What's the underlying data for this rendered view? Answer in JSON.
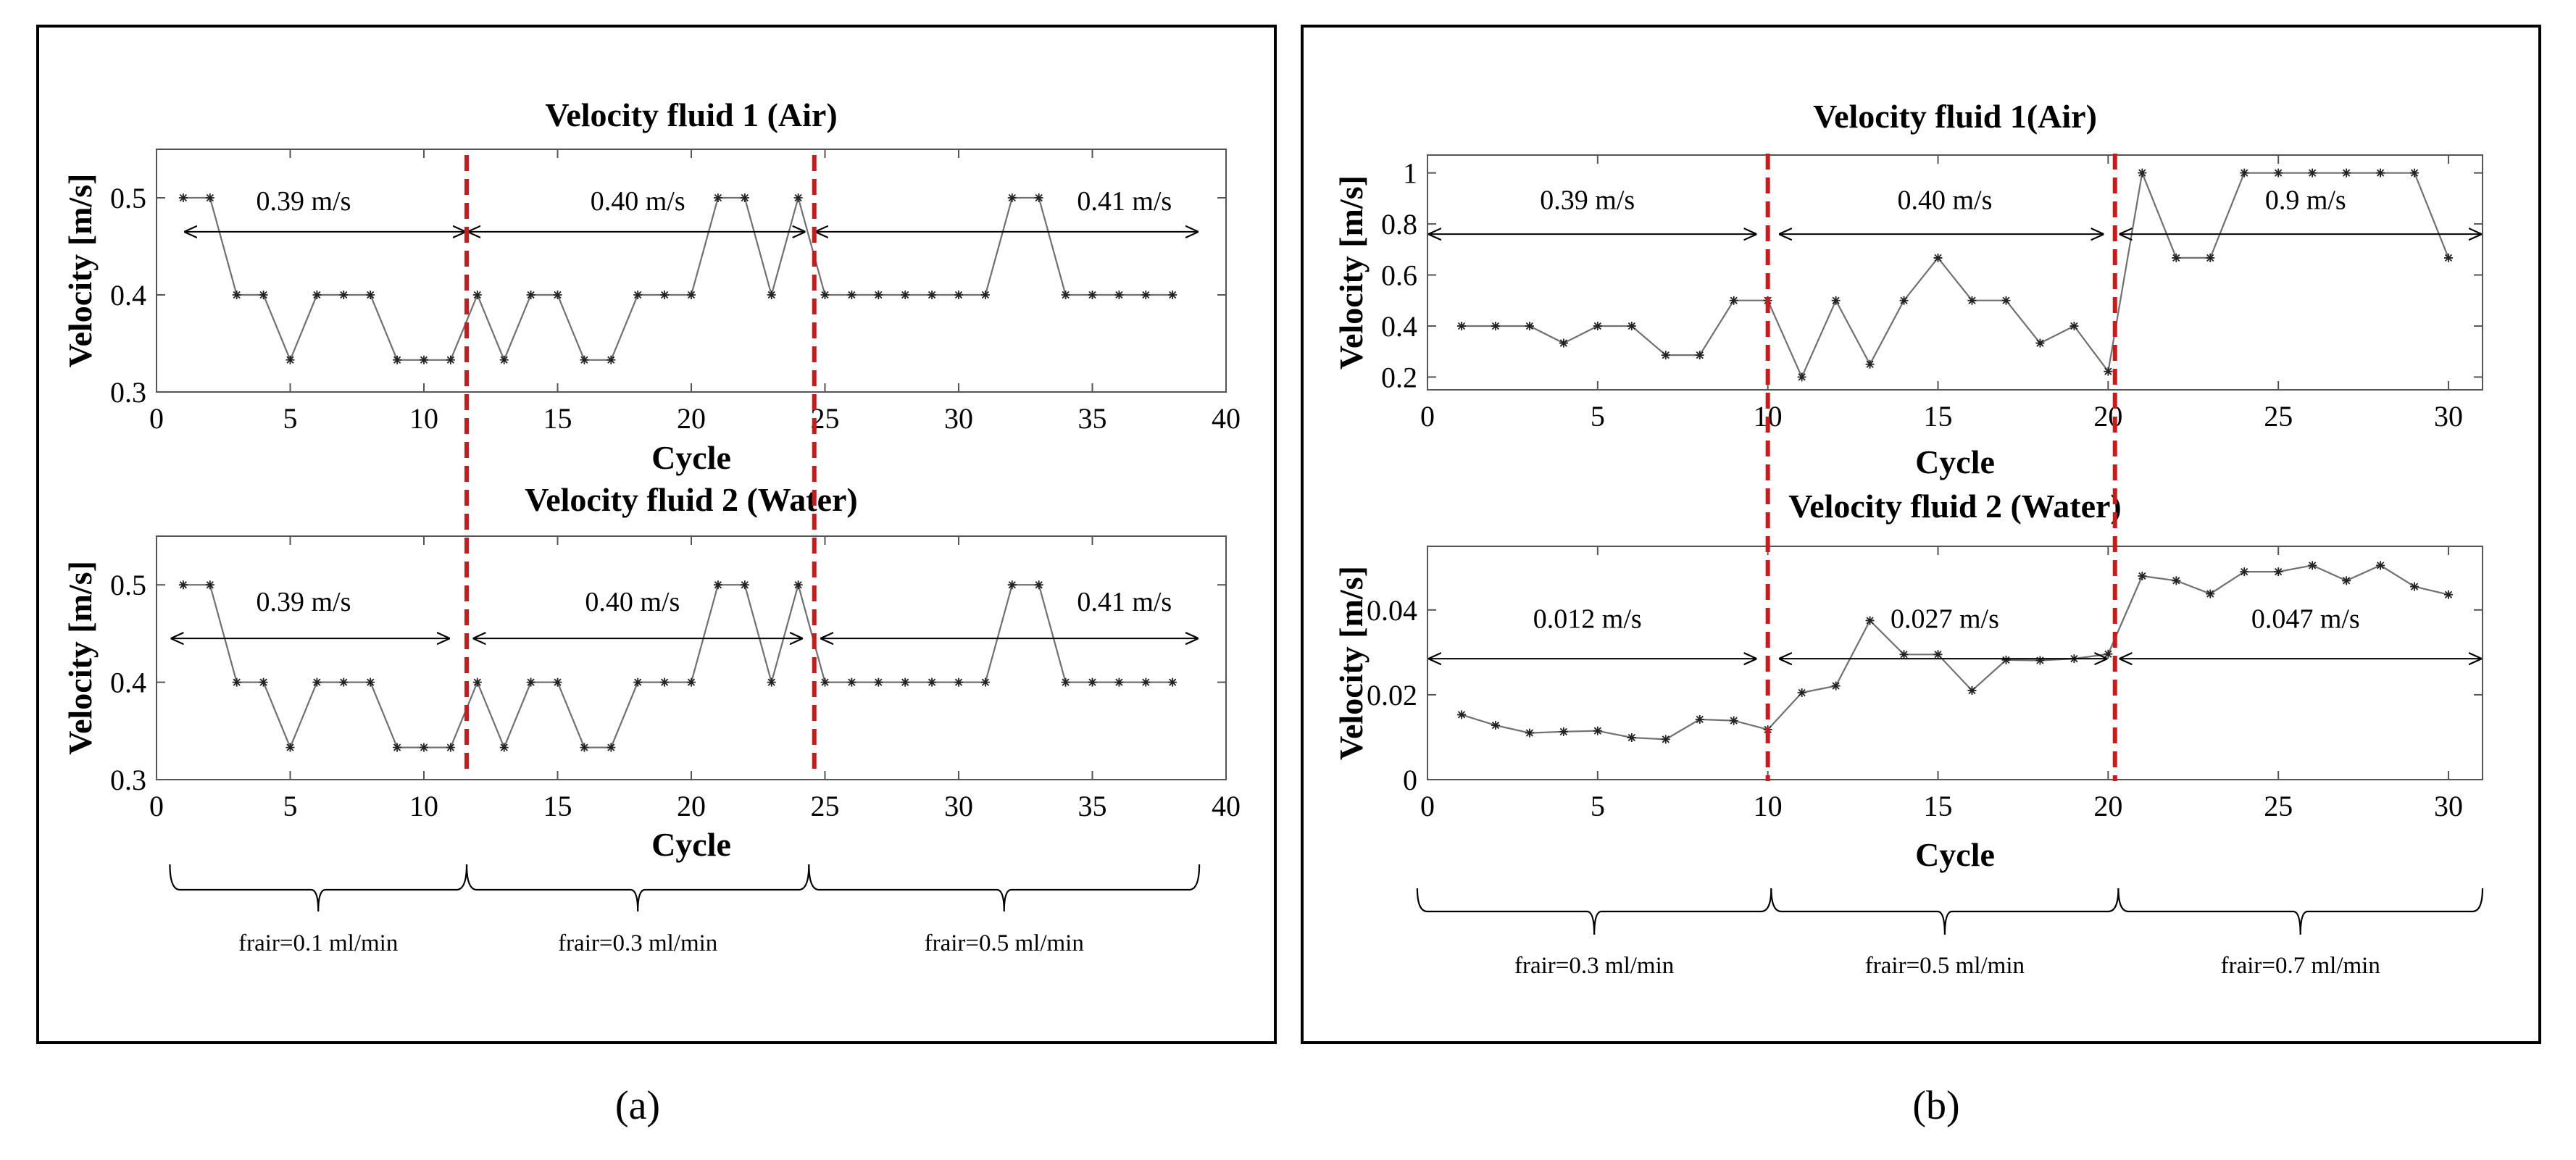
{
  "figure": {
    "panels": [
      {
        "label": "(a)",
        "charts": [
          {
            "title": "Velocity fluid 1 (Air)",
            "ylabel": "Velocity  [m/s]",
            "xlabel": "Cycle",
            "xlim": [
              0,
              40
            ],
            "ylim": [
              0.3,
              0.55
            ],
            "xticks": [
              0,
              5,
              10,
              15,
              20,
              25,
              30,
              35,
              40
            ],
            "yticks": [
              0.3,
              0.4,
              0.5
            ],
            "ytick_labels": [
              "0.3",
              "0.4",
              "0.5"
            ],
            "x": [
              1,
              2,
              3,
              4,
              5,
              6,
              7,
              8,
              9,
              10,
              11,
              12,
              13,
              14,
              15,
              16,
              17,
              18,
              19,
              20,
              21,
              22,
              23,
              24,
              25,
              26,
              27,
              28,
              29,
              30,
              31,
              32,
              33,
              34,
              35,
              36,
              37,
              38
            ],
            "values": [
              0.5,
              0.5,
              0.4,
              0.4,
              0.333,
              0.4,
              0.4,
              0.4,
              0.333,
              0.333,
              0.333,
              0.4,
              0.333,
              0.4,
              0.4,
              0.333,
              0.333,
              0.4,
              0.4,
              0.4,
              0.5,
              0.5,
              0.4,
              0.5,
              0.4,
              0.4,
              0.4,
              0.4,
              0.4,
              0.4,
              0.4,
              0.5,
              0.5,
              0.4,
              0.4,
              0.4,
              0.4,
              0.4
            ],
            "dividers": [
              11.6,
              24.6
            ],
            "arrow_y": 0.465,
            "segments": [
              {
                "from": 1,
                "to": 11.6,
                "label": "0.39 m/s",
                "label_x": 5.5,
                "label_y": 0.497
              },
              {
                "from": 11.6,
                "to": 24.3,
                "label": "0.40 m/s",
                "label_x": 18,
                "label_y": 0.497
              },
              {
                "from": 24.6,
                "to": 39,
                "label": "0.41 m/s",
                "label_x": 36.2,
                "label_y": 0.497
              }
            ]
          },
          {
            "title": "Velocity fluid 2 (Water)",
            "ylabel": "Velocity  [m/s]",
            "xlabel": "Cycle",
            "xlim": [
              0,
              40
            ],
            "ylim": [
              0.3,
              0.55
            ],
            "xticks": [
              0,
              5,
              10,
              15,
              20,
              25,
              30,
              35,
              40
            ],
            "yticks": [
              0.3,
              0.4,
              0.5
            ],
            "ytick_labels": [
              "0.3",
              "0.4",
              "0.5"
            ],
            "x": [
              1,
              2,
              3,
              4,
              5,
              6,
              7,
              8,
              9,
              10,
              11,
              12,
              13,
              14,
              15,
              16,
              17,
              18,
              19,
              20,
              21,
              22,
              23,
              24,
              25,
              26,
              27,
              28,
              29,
              30,
              31,
              32,
              33,
              34,
              35,
              36,
              37,
              38
            ],
            "values": [
              0.5,
              0.5,
              0.4,
              0.4,
              0.333,
              0.4,
              0.4,
              0.4,
              0.333,
              0.333,
              0.333,
              0.4,
              0.333,
              0.4,
              0.4,
              0.333,
              0.333,
              0.4,
              0.4,
              0.4,
              0.5,
              0.5,
              0.4,
              0.5,
              0.4,
              0.4,
              0.4,
              0.4,
              0.4,
              0.4,
              0.4,
              0.5,
              0.5,
              0.4,
              0.4,
              0.4,
              0.4,
              0.4
            ],
            "dividers": [
              11.6,
              24.6
            ],
            "arrow_y": 0.445,
            "segments": [
              {
                "from": 0.5,
                "to": 11,
                "label": "0.39 m/s",
                "label_x": 5.5,
                "label_y": 0.483
              },
              {
                "from": 11.8,
                "to": 24.2,
                "label": "0.40 m/s",
                "label_x": 17.8,
                "label_y": 0.483
              },
              {
                "from": 24.8,
                "to": 39,
                "label": "0.41 m/s",
                "label_x": 36.2,
                "label_y": 0.483
              }
            ]
          }
        ],
        "flow_x_range": [
          0.5,
          39
        ],
        "flow_breaks": [
          11.6,
          24.4
        ],
        "flow_labels": [
          "frair=0.1 ml/min",
          "frair=0.3 ml/min",
          "frair=0.5 ml/min"
        ]
      },
      {
        "label": "(b)",
        "charts": [
          {
            "title": "Velocity fluid 1(Air)",
            "ylabel": "Velocity  [m/s]",
            "xlabel": "Cycle",
            "xlim": [
              0,
              31
            ],
            "ylim": [
              0.15,
              1.07
            ],
            "xticks": [
              0,
              5,
              10,
              15,
              20,
              25,
              30
            ],
            "yticks": [
              0.2,
              0.4,
              0.6,
              0.8,
              1
            ],
            "ytick_labels": [
              "0.2",
              "0.4",
              "0.6",
              "0.8",
              "1"
            ],
            "x": [
              1,
              2,
              3,
              4,
              5,
              6,
              7,
              8,
              9,
              10,
              11,
              12,
              13,
              14,
              15,
              16,
              17,
              18,
              19,
              20,
              21,
              22,
              23,
              24,
              25,
              26,
              27,
              28,
              29,
              30
            ],
            "values": [
              0.4,
              0.4,
              0.4,
              0.333,
              0.4,
              0.4,
              0.286,
              0.286,
              0.5,
              0.5,
              0.2,
              0.5,
              0.25,
              0.5,
              0.667,
              0.5,
              0.5,
              0.333,
              0.4,
              0.222,
              1,
              0.667,
              0.667,
              1,
              1,
              1,
              1,
              1,
              1,
              0.667
            ],
            "dividers": [
              10,
              20.2
            ],
            "arrow_y": 0.76,
            "segments": [
              {
                "from": 0,
                "to": 9.7,
                "label": "0.39 m/s",
                "label_x": 4.7,
                "label_y": 0.895
              },
              {
                "from": 10.3,
                "to": 19.9,
                "label": "0.40 m/s",
                "label_x": 15.2,
                "label_y": 0.895
              },
              {
                "from": 20.3,
                "to": 31,
                "label": "0.9 m/s",
                "label_x": 25.8,
                "label_y": 0.895
              }
            ]
          },
          {
            "title": "Velocity fluid 2 (Water)",
            "ylabel": "Velocity  [m/s]",
            "xlabel": "Cycle",
            "xlim": [
              0,
              31
            ],
            "ylim": [
              0,
              0.055
            ],
            "xticks": [
              0,
              5,
              10,
              15,
              20,
              25,
              30
            ],
            "yticks": [
              0,
              0.02,
              0.04
            ],
            "ytick_labels": [
              "0",
              "0.02",
              "0.04"
            ],
            "x": [
              1,
              2,
              3,
              4,
              5,
              6,
              7,
              8,
              9,
              10,
              11,
              12,
              13,
              14,
              15,
              16,
              17,
              18,
              19,
              20,
              21,
              22,
              23,
              24,
              25,
              26,
              27,
              28,
              29,
              30
            ],
            "values": [
              0.0153,
              0.0128,
              0.011,
              0.0113,
              0.0115,
              0.0099,
              0.0095,
              0.0142,
              0.0139,
              0.0118,
              0.0205,
              0.0221,
              0.0375,
              0.0295,
              0.0295,
              0.021,
              0.0282,
              0.0281,
              0.0285,
              0.0296,
              0.048,
              0.0469,
              0.0438,
              0.049,
              0.049,
              0.0505,
              0.0469,
              0.0505,
              0.0455,
              0.0436
            ],
            "dividers": [
              10,
              20.2
            ],
            "arrow_y": 0.0285,
            "segments": [
              {
                "from": 0,
                "to": 9.7,
                "label": "0.012 m/s",
                "label_x": 4.7,
                "label_y": 0.038
              },
              {
                "from": 10.3,
                "to": 20,
                "label": "0.027 m/s",
                "label_x": 15.2,
                "label_y": 0.038
              },
              {
                "from": 20.3,
                "to": 31,
                "label": "0.047 m/s",
                "label_x": 25.8,
                "label_y": 0.038
              }
            ]
          }
        ],
        "flow_x_range": [
          -0.3,
          31
        ],
        "flow_breaks": [
          10.1,
          20.3
        ],
        "flow_labels": [
          "frair=0.3 ml/min",
          "frair=0.5 ml/min",
          "frair=0.7 ml/min"
        ]
      }
    ]
  },
  "chart_data": [
    {
      "type": "line",
      "panel": "(a)",
      "title": "Velocity fluid 1 (Air)",
      "xlabel": "Cycle",
      "ylabel": "Velocity  [m/s]",
      "xlim": [
        0,
        40
      ],
      "ylim": [
        0.3,
        0.55
      ],
      "x": [
        1,
        2,
        3,
        4,
        5,
        6,
        7,
        8,
        9,
        10,
        11,
        12,
        13,
        14,
        15,
        16,
        17,
        18,
        19,
        20,
        21,
        22,
        23,
        24,
        25,
        26,
        27,
        28,
        29,
        30,
        31,
        32,
        33,
        34,
        35,
        36,
        37,
        38
      ],
      "values": [
        0.5,
        0.5,
        0.4,
        0.4,
        0.333,
        0.4,
        0.4,
        0.4,
        0.333,
        0.333,
        0.333,
        0.4,
        0.333,
        0.4,
        0.4,
        0.333,
        0.333,
        0.4,
        0.4,
        0.4,
        0.5,
        0.5,
        0.4,
        0.5,
        0.4,
        0.4,
        0.4,
        0.4,
        0.4,
        0.4,
        0.4,
        0.5,
        0.5,
        0.4,
        0.4,
        0.4,
        0.4,
        0.4
      ],
      "annotations": [
        "0.39 m/s",
        "0.40 m/s",
        "0.41 m/s"
      ]
    },
    {
      "type": "line",
      "panel": "(a)",
      "title": "Velocity fluid 2 (Water)",
      "xlabel": "Cycle",
      "ylabel": "Velocity  [m/s]",
      "xlim": [
        0,
        40
      ],
      "ylim": [
        0.3,
        0.55
      ],
      "x": [
        1,
        2,
        3,
        4,
        5,
        6,
        7,
        8,
        9,
        10,
        11,
        12,
        13,
        14,
        15,
        16,
        17,
        18,
        19,
        20,
        21,
        22,
        23,
        24,
        25,
        26,
        27,
        28,
        29,
        30,
        31,
        32,
        33,
        34,
        35,
        36,
        37,
        38
      ],
      "values": [
        0.5,
        0.5,
        0.4,
        0.4,
        0.333,
        0.4,
        0.4,
        0.4,
        0.333,
        0.333,
        0.333,
        0.4,
        0.333,
        0.4,
        0.4,
        0.333,
        0.333,
        0.4,
        0.4,
        0.4,
        0.5,
        0.5,
        0.4,
        0.5,
        0.4,
        0.4,
        0.4,
        0.4,
        0.4,
        0.4,
        0.4,
        0.5,
        0.5,
        0.4,
        0.4,
        0.4,
        0.4,
        0.4
      ],
      "annotations": [
        "0.39 m/s",
        "0.40 m/s",
        "0.41 m/s"
      ]
    },
    {
      "type": "line",
      "panel": "(b)",
      "title": "Velocity fluid 1(Air)",
      "xlabel": "Cycle",
      "ylabel": "Velocity  [m/s]",
      "xlim": [
        0,
        31
      ],
      "ylim": [
        0.15,
        1.07
      ],
      "x": [
        1,
        2,
        3,
        4,
        5,
        6,
        7,
        8,
        9,
        10,
        11,
        12,
        13,
        14,
        15,
        16,
        17,
        18,
        19,
        20,
        21,
        22,
        23,
        24,
        25,
        26,
        27,
        28,
        29,
        30
      ],
      "values": [
        0.4,
        0.4,
        0.4,
        0.333,
        0.4,
        0.4,
        0.286,
        0.286,
        0.5,
        0.5,
        0.2,
        0.5,
        0.25,
        0.5,
        0.667,
        0.5,
        0.5,
        0.333,
        0.4,
        0.222,
        1,
        0.667,
        0.667,
        1,
        1,
        1,
        1,
        1,
        1,
        0.667
      ],
      "annotations": [
        "0.39 m/s",
        "0.40 m/s",
        "0.9 m/s"
      ]
    },
    {
      "type": "line",
      "panel": "(b)",
      "title": "Velocity fluid 2 (Water)",
      "xlabel": "Cycle",
      "ylabel": "Velocity  [m/s]",
      "xlim": [
        0,
        31
      ],
      "ylim": [
        0,
        0.055
      ],
      "x": [
        1,
        2,
        3,
        4,
        5,
        6,
        7,
        8,
        9,
        10,
        11,
        12,
        13,
        14,
        15,
        16,
        17,
        18,
        19,
        20,
        21,
        22,
        23,
        24,
        25,
        26,
        27,
        28,
        29,
        30
      ],
      "values": [
        0.0153,
        0.0128,
        0.011,
        0.0113,
        0.0115,
        0.0099,
        0.0095,
        0.0142,
        0.0139,
        0.0118,
        0.0205,
        0.0221,
        0.0375,
        0.0295,
        0.0295,
        0.021,
        0.0282,
        0.0281,
        0.0285,
        0.0296,
        0.048,
        0.0469,
        0.0438,
        0.049,
        0.049,
        0.0505,
        0.0469,
        0.0505,
        0.0455,
        0.0436
      ],
      "annotations": [
        "0.012 m/s",
        "0.027 m/s",
        "0.047 m/s"
      ]
    }
  ]
}
